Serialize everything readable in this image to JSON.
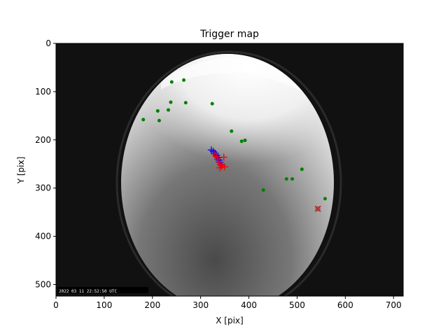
{
  "chart_data": {
    "type": "scatter",
    "title": "Trigger map",
    "xlabel": "X [pix]",
    "ylabel": "Y [pix]",
    "xlim": [
      0,
      720
    ],
    "ylim": [
      524,
      0
    ],
    "xticks": [
      0,
      100,
      200,
      300,
      400,
      500,
      600,
      700
    ],
    "yticks": [
      0,
      100,
      200,
      300,
      400,
      500
    ],
    "grid": false,
    "background_image": "all-sky fisheye camera frame",
    "timestamp_overlay": "2022 03 11 22:52:50 UTC",
    "series": [
      {
        "marker": "dot",
        "color": "#008000",
        "points": [
          {
            "x": 240,
            "y": 80
          },
          {
            "x": 265,
            "y": 76
          },
          {
            "x": 238,
            "y": 122
          },
          {
            "x": 269,
            "y": 123
          },
          {
            "x": 324,
            "y": 125
          },
          {
            "x": 211,
            "y": 140
          },
          {
            "x": 233,
            "y": 138
          },
          {
            "x": 181,
            "y": 158
          },
          {
            "x": 214,
            "y": 160
          },
          {
            "x": 364,
            "y": 182
          },
          {
            "x": 385,
            "y": 203
          },
          {
            "x": 392,
            "y": 201
          },
          {
            "x": 510,
            "y": 261
          },
          {
            "x": 478,
            "y": 281
          },
          {
            "x": 490,
            "y": 281
          },
          {
            "x": 430,
            "y": 304
          },
          {
            "x": 558,
            "y": 322
          }
        ]
      },
      {
        "marker": "plus",
        "color": "#0000ff",
        "points": [
          {
            "x": 322,
            "y": 221
          },
          {
            "x": 326,
            "y": 224
          },
          {
            "x": 330,
            "y": 228
          },
          {
            "x": 333,
            "y": 232
          },
          {
            "x": 336,
            "y": 237
          },
          {
            "x": 338,
            "y": 242
          },
          {
            "x": 340,
            "y": 247
          },
          {
            "x": 342,
            "y": 252
          }
        ]
      },
      {
        "marker": "plus",
        "color": "#ff0000",
        "points": [
          {
            "x": 328,
            "y": 229
          },
          {
            "x": 332,
            "y": 234
          },
          {
            "x": 335,
            "y": 240
          },
          {
            "x": 338,
            "y": 246
          },
          {
            "x": 341,
            "y": 251
          },
          {
            "x": 344,
            "y": 255
          },
          {
            "x": 348,
            "y": 236
          },
          {
            "x": 350,
            "y": 256
          },
          {
            "x": 340,
            "y": 258
          }
        ]
      },
      {
        "marker": "x",
        "color": "#b22222",
        "points": [
          {
            "x": 543,
            "y": 343
          }
        ]
      }
    ]
  }
}
